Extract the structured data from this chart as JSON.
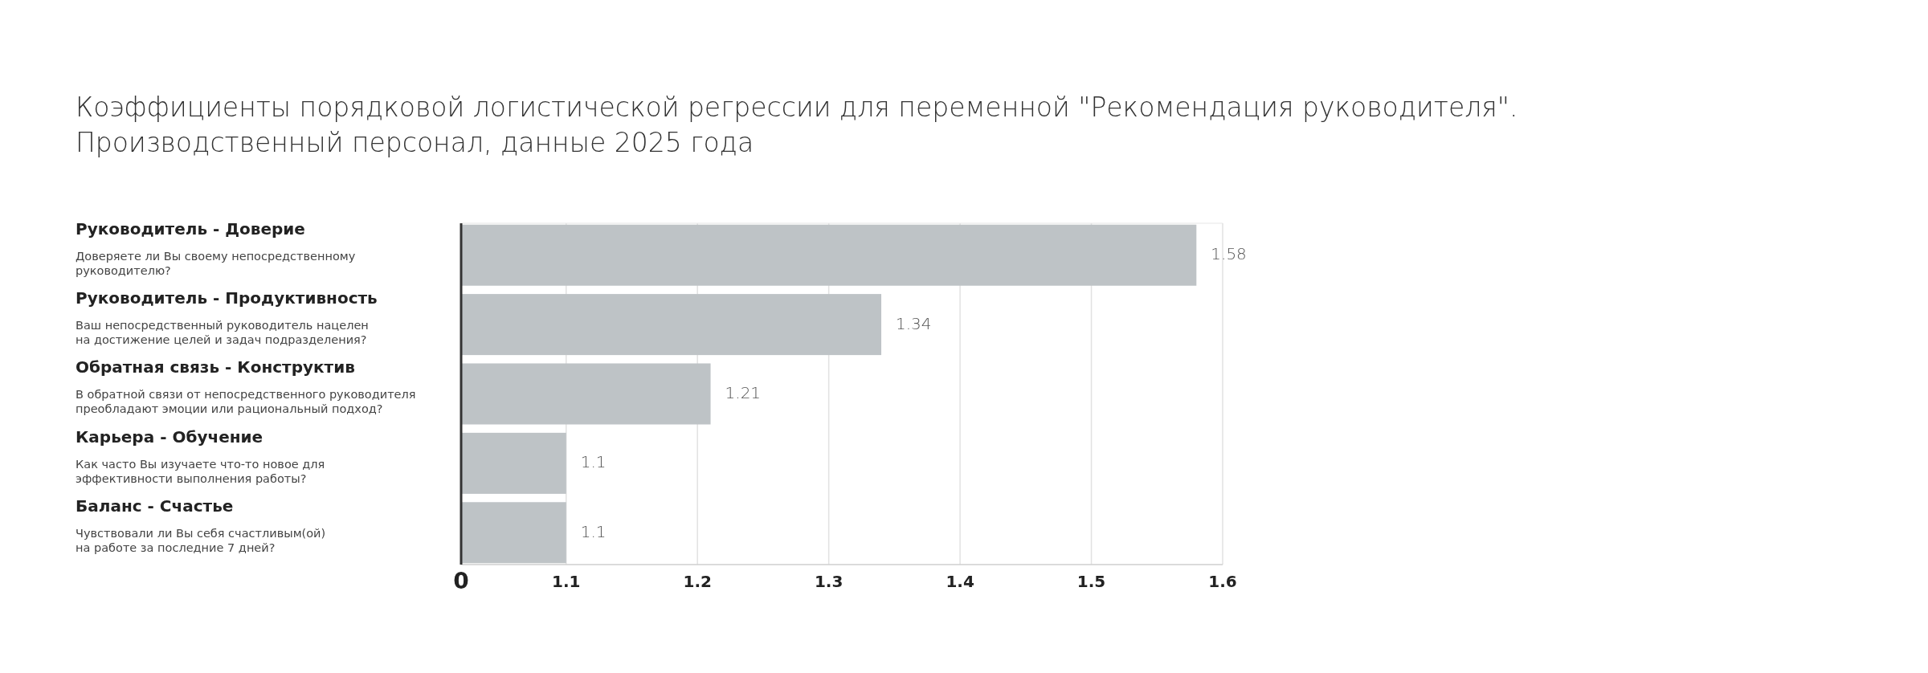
{
  "chart_data": {
    "type": "bar",
    "orientation": "horizontal",
    "title": "Коэффициенты порядковой логистической регрессии для переменной \"Рекомендация руководителя\".\nПроизводственный персонал, данные 2025 года",
    "categories": [
      "Руководитель - Доверие\nДоверяете ли Вы своему непосредственному\nруководителю?",
      "Руководитель - Продуктивность\nВаш непосредственный руководитель нацелен\nна достижение целей и задач подразделения?",
      "Обратная связь - Конструктив\nВ обратной связи от непосредственного руководителя\nпреобладают эмоции или рациональный подход?",
      "Карьера - Обучение\nКак часто Вы изучаете что-то новое для\nэффективности выполнения работы?",
      "Баланс - Счастье\nЧувствовали ли Вы себя счастливым(ой)\nна работе за последние 7 дней?"
    ],
    "values": [
      1.58,
      1.34,
      1.21,
      1.1,
      1.1
    ],
    "color": "#bec3c6",
    "data_labels": true,
    "grid": "x",
    "xlim": [
      1.02,
      1.6
    ],
    "xticks": [
      1.1,
      1.2,
      1.3,
      1.4,
      1.5,
      1.6
    ],
    "annotations": [
      "0"
    ]
  }
}
